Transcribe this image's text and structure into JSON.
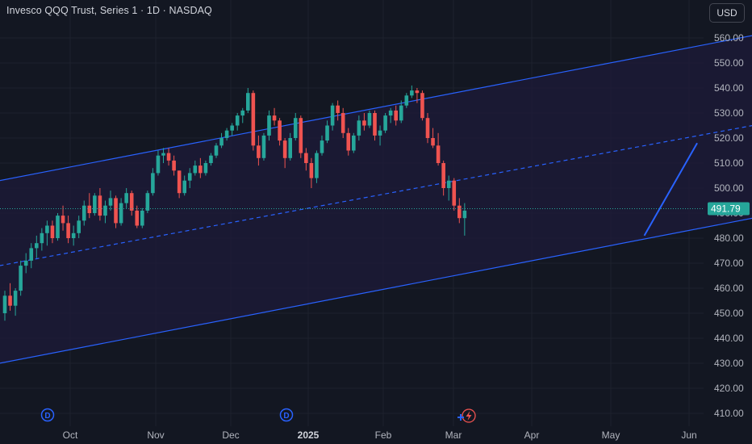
{
  "header": {
    "title": "Invesco QQQ Trust, Series 1 · 1D · NASDAQ"
  },
  "currency_button": {
    "label": "USD"
  },
  "colors": {
    "background": "#131722",
    "up": "#26a69a",
    "down": "#ef5350",
    "channel": "#2962ff",
    "channel_fill": "#1d1b3a",
    "price_tag": "#26a69a",
    "drawing_line": "#2962ff"
  },
  "events": {
    "dividend_markers": [
      {
        "label": "D",
        "date": "2024-09-23"
      },
      {
        "label": "D",
        "date": "2024-12-23"
      }
    ],
    "lightning_icon": "lightning-icon",
    "plus_icon": "plus-icon"
  },
  "chart_data": {
    "type": "candlestick",
    "title": "Invesco QQQ Trust, Series 1 · 1D · NASDAQ",
    "x_tick_labels": [
      "Oct",
      "Nov",
      "Dec",
      "2025",
      "Feb",
      "Mar",
      "Apr",
      "May",
      "Jun"
    ],
    "y_tick_labels": [
      "410.00",
      "420.00",
      "430.00",
      "440.00",
      "450.00",
      "460.00",
      "470.00",
      "480.00",
      "490.00",
      "500.00",
      "510.00",
      "520.00",
      "530.00",
      "540.00",
      "550.00",
      "560.00"
    ],
    "ylim": [
      406,
      574
    ],
    "current_price": "491.79",
    "grid": true,
    "candles": [
      {
        "o": 450,
        "h": 459,
        "l": 447,
        "c": 457
      },
      {
        "o": 457,
        "h": 462,
        "l": 451,
        "c": 453
      },
      {
        "o": 453,
        "h": 460,
        "l": 449,
        "c": 459
      },
      {
        "o": 459,
        "h": 471,
        "l": 457,
        "c": 469
      },
      {
        "o": 469,
        "h": 474,
        "l": 466,
        "c": 471
      },
      {
        "o": 471,
        "h": 478,
        "l": 468,
        "c": 476
      },
      {
        "o": 476,
        "h": 481,
        "l": 472,
        "c": 478
      },
      {
        "o": 478,
        "h": 484,
        "l": 475,
        "c": 482
      },
      {
        "o": 482,
        "h": 487,
        "l": 477,
        "c": 485
      },
      {
        "o": 485,
        "h": 487,
        "l": 478,
        "c": 480
      },
      {
        "o": 480,
        "h": 490,
        "l": 479,
        "c": 489
      },
      {
        "o": 489,
        "h": 493,
        "l": 483,
        "c": 486
      },
      {
        "o": 486,
        "h": 489,
        "l": 478,
        "c": 480
      },
      {
        "o": 480,
        "h": 485,
        "l": 477,
        "c": 482
      },
      {
        "o": 482,
        "h": 489,
        "l": 480,
        "c": 487
      },
      {
        "o": 487,
        "h": 495,
        "l": 485,
        "c": 493
      },
      {
        "o": 493,
        "h": 498,
        "l": 488,
        "c": 490
      },
      {
        "o": 490,
        "h": 498,
        "l": 489,
        "c": 497
      },
      {
        "o": 497,
        "h": 500,
        "l": 487,
        "c": 489
      },
      {
        "o": 489,
        "h": 495,
        "l": 486,
        "c": 493
      },
      {
        "o": 493,
        "h": 499,
        "l": 491,
        "c": 496
      },
      {
        "o": 496,
        "h": 497,
        "l": 484,
        "c": 486
      },
      {
        "o": 486,
        "h": 496,
        "l": 485,
        "c": 494
      },
      {
        "o": 494,
        "h": 500,
        "l": 492,
        "c": 498
      },
      {
        "o": 498,
        "h": 499,
        "l": 489,
        "c": 491
      },
      {
        "o": 491,
        "h": 493,
        "l": 484,
        "c": 485
      },
      {
        "o": 485,
        "h": 492,
        "l": 484,
        "c": 491
      },
      {
        "o": 491,
        "h": 499,
        "l": 490,
        "c": 498
      },
      {
        "o": 498,
        "h": 508,
        "l": 497,
        "c": 506
      },
      {
        "o": 506,
        "h": 515,
        "l": 505,
        "c": 513
      },
      {
        "o": 513,
        "h": 516,
        "l": 510,
        "c": 514
      },
      {
        "o": 514,
        "h": 516,
        "l": 509,
        "c": 511
      },
      {
        "o": 511,
        "h": 513,
        "l": 505,
        "c": 507
      },
      {
        "o": 507,
        "h": 507,
        "l": 496,
        "c": 498
      },
      {
        "o": 498,
        "h": 505,
        "l": 497,
        "c": 503
      },
      {
        "o": 503,
        "h": 508,
        "l": 500,
        "c": 506
      },
      {
        "o": 506,
        "h": 511,
        "l": 505,
        "c": 509
      },
      {
        "o": 509,
        "h": 512,
        "l": 504,
        "c": 506
      },
      {
        "o": 506,
        "h": 511,
        "l": 505,
        "c": 510
      },
      {
        "o": 510,
        "h": 514,
        "l": 509,
        "c": 513
      },
      {
        "o": 513,
        "h": 518,
        "l": 512,
        "c": 517
      },
      {
        "o": 517,
        "h": 522,
        "l": 516,
        "c": 520
      },
      {
        "o": 520,
        "h": 524,
        "l": 519,
        "c": 523
      },
      {
        "o": 523,
        "h": 526,
        "l": 521,
        "c": 525
      },
      {
        "o": 525,
        "h": 530,
        "l": 523,
        "c": 529
      },
      {
        "o": 529,
        "h": 532,
        "l": 526,
        "c": 531
      },
      {
        "o": 531,
        "h": 540,
        "l": 530,
        "c": 538
      },
      {
        "o": 538,
        "h": 539,
        "l": 515,
        "c": 517
      },
      {
        "o": 517,
        "h": 521,
        "l": 509,
        "c": 512
      },
      {
        "o": 512,
        "h": 522,
        "l": 511,
        "c": 521
      },
      {
        "o": 521,
        "h": 531,
        "l": 519,
        "c": 529
      },
      {
        "o": 529,
        "h": 532,
        "l": 525,
        "c": 527
      },
      {
        "o": 527,
        "h": 528,
        "l": 517,
        "c": 519
      },
      {
        "o": 519,
        "h": 520,
        "l": 508,
        "c": 512
      },
      {
        "o": 512,
        "h": 522,
        "l": 511,
        "c": 520
      },
      {
        "o": 520,
        "h": 530,
        "l": 519,
        "c": 528
      },
      {
        "o": 528,
        "h": 529,
        "l": 512,
        "c": 514
      },
      {
        "o": 514,
        "h": 516,
        "l": 507,
        "c": 510
      },
      {
        "o": 510,
        "h": 512,
        "l": 500,
        "c": 504
      },
      {
        "o": 504,
        "h": 515,
        "l": 502,
        "c": 514
      },
      {
        "o": 514,
        "h": 521,
        "l": 513,
        "c": 519
      },
      {
        "o": 519,
        "h": 527,
        "l": 518,
        "c": 525
      },
      {
        "o": 525,
        "h": 534,
        "l": 523,
        "c": 533
      },
      {
        "o": 533,
        "h": 535,
        "l": 527,
        "c": 530
      },
      {
        "o": 530,
        "h": 532,
        "l": 520,
        "c": 522
      },
      {
        "o": 522,
        "h": 524,
        "l": 513,
        "c": 515
      },
      {
        "o": 515,
        "h": 522,
        "l": 514,
        "c": 521
      },
      {
        "o": 521,
        "h": 529,
        "l": 519,
        "c": 527
      },
      {
        "o": 527,
        "h": 530,
        "l": 523,
        "c": 525
      },
      {
        "o": 525,
        "h": 531,
        "l": 524,
        "c": 530
      },
      {
        "o": 530,
        "h": 531,
        "l": 519,
        "c": 521
      },
      {
        "o": 521,
        "h": 525,
        "l": 517,
        "c": 523
      },
      {
        "o": 523,
        "h": 530,
        "l": 522,
        "c": 529
      },
      {
        "o": 529,
        "h": 532,
        "l": 526,
        "c": 531
      },
      {
        "o": 531,
        "h": 533,
        "l": 525,
        "c": 527
      },
      {
        "o": 527,
        "h": 535,
        "l": 526,
        "c": 533
      },
      {
        "o": 533,
        "h": 538,
        "l": 532,
        "c": 537
      },
      {
        "o": 537,
        "h": 541,
        "l": 536,
        "c": 539
      },
      {
        "o": 539,
        "h": 540,
        "l": 534,
        "c": 538
      },
      {
        "o": 538,
        "h": 539,
        "l": 527,
        "c": 528
      },
      {
        "o": 528,
        "h": 530,
        "l": 518,
        "c": 520
      },
      {
        "o": 520,
        "h": 524,
        "l": 516,
        "c": 517
      },
      {
        "o": 517,
        "h": 522,
        "l": 509,
        "c": 510
      },
      {
        "o": 510,
        "h": 511,
        "l": 497,
        "c": 500
      },
      {
        "o": 500,
        "h": 505,
        "l": 495,
        "c": 503
      },
      {
        "o": 503,
        "h": 504,
        "l": 491,
        "c": 493
      },
      {
        "o": 493,
        "h": 496,
        "l": 486,
        "c": 488
      },
      {
        "o": 488,
        "h": 494,
        "l": 481,
        "c": 491
      }
    ],
    "channel": {
      "upper": [
        [
          -1,
          503
        ],
        [
          144,
          562
        ]
      ],
      "middle": [
        [
          -1,
          469
        ],
        [
          144,
          526
        ]
      ],
      "lower": [
        [
          -1,
          430
        ],
        [
          144,
          489
        ]
      ]
    },
    "projection_line": [
      [
        121,
        481
      ],
      [
        131,
        518
      ]
    ]
  }
}
